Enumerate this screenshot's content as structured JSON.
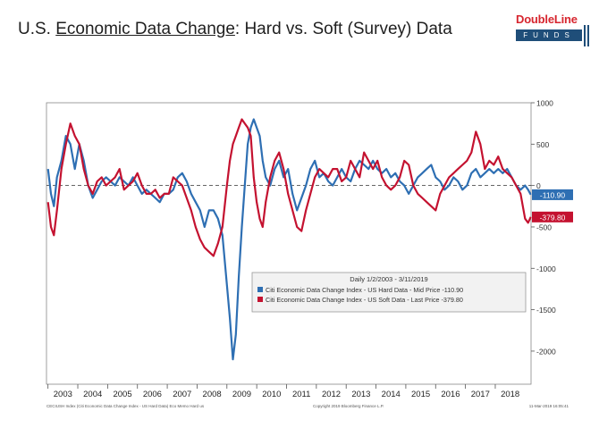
{
  "title": {
    "prefix": "U.S. ",
    "underlined": "Economic Data Change",
    "suffix": ": Hard vs. Soft (Survey) Data"
  },
  "logo": {
    "brand": "DoubleLine",
    "sub": "FUNDS"
  },
  "chart_data": {
    "type": "line",
    "title": "",
    "ylim": [
      -2400,
      1000
    ],
    "xlim": [
      2002.95,
      2019.2
    ],
    "y_ticks": [
      1000,
      500,
      0,
      -500,
      -1000,
      -1500,
      -2000
    ],
    "x_ticks": [
      "2003",
      "2004",
      "2005",
      "2006",
      "2007",
      "2008",
      "2009",
      "2010",
      "2011",
      "2012",
      "2013",
      "2014",
      "2015",
      "2016",
      "2017",
      "2018"
    ],
    "zero_line": "dashed",
    "grid": false,
    "legend": {
      "placement": "lower-right",
      "header": "Daily 1/2/2003 - 3/11/2019",
      "entries": [
        "Citi Economic Data Change Index - US Hard Data - Mid Price -110.90",
        "Citi Economic Data Change Index - US Soft Data - Last Price -379.80"
      ]
    },
    "series": [
      {
        "name": "Citi Economic Data Change Index - US Hard Data - Mid Price",
        "color": "#2e6fb3",
        "last_label": "-110.90",
        "x": [
          2003.0,
          2003.1,
          2003.2,
          2003.3,
          2003.45,
          2003.6,
          2003.75,
          2003.9,
          2004.05,
          2004.2,
          2004.35,
          2004.5,
          2004.65,
          2004.8,
          2004.95,
          2005.1,
          2005.25,
          2005.4,
          2005.55,
          2005.7,
          2005.85,
          2006.0,
          2006.15,
          2006.3,
          2006.45,
          2006.6,
          2006.75,
          2006.9,
          2007.05,
          2007.2,
          2007.35,
          2007.5,
          2007.65,
          2007.8,
          2007.95,
          2008.1,
          2008.25,
          2008.4,
          2008.55,
          2008.7,
          2008.85,
          2009.0,
          2009.1,
          2009.2,
          2009.3,
          2009.4,
          2009.5,
          2009.6,
          2009.7,
          2009.8,
          2009.9,
          2010.0,
          2010.1,
          2010.2,
          2010.3,
          2010.45,
          2010.6,
          2010.75,
          2010.9,
          2011.05,
          2011.2,
          2011.35,
          2011.5,
          2011.65,
          2011.8,
          2011.95,
          2012.1,
          2012.25,
          2012.4,
          2012.55,
          2012.7,
          2012.85,
          2013.0,
          2013.15,
          2013.3,
          2013.45,
          2013.6,
          2013.75,
          2013.9,
          2014.05,
          2014.2,
          2014.35,
          2014.5,
          2014.65,
          2014.8,
          2014.95,
          2015.1,
          2015.25,
          2015.4,
          2015.55,
          2015.7,
          2015.85,
          2016.0,
          2016.15,
          2016.3,
          2016.45,
          2016.6,
          2016.75,
          2016.9,
          2017.05,
          2017.2,
          2017.35,
          2017.5,
          2017.65,
          2017.8,
          2017.95,
          2018.1,
          2018.25,
          2018.4,
          2018.55,
          2018.7,
          2018.85,
          2019.0,
          2019.1,
          2019.19
        ],
        "y": [
          200,
          -100,
          -250,
          100,
          300,
          600,
          500,
          200,
          500,
          300,
          0,
          -150,
          -50,
          50,
          100,
          50,
          0,
          100,
          50,
          0,
          100,
          0,
          -100,
          -50,
          -100,
          -150,
          -200,
          -100,
          -100,
          -50,
          100,
          150,
          50,
          -100,
          -200,
          -300,
          -500,
          -300,
          -300,
          -400,
          -600,
          -1200,
          -1600,
          -2100,
          -1800,
          -1100,
          -500,
          0,
          500,
          700,
          800,
          700,
          600,
          300,
          100,
          0,
          200,
          300,
          100,
          200,
          -100,
          -300,
          -150,
          0,
          200,
          300,
          100,
          150,
          50,
          0,
          100,
          200,
          100,
          50,
          200,
          300,
          250,
          200,
          300,
          200,
          150,
          200,
          100,
          150,
          50,
          0,
          -100,
          0,
          100,
          150,
          200,
          250,
          100,
          50,
          -50,
          0,
          100,
          50,
          -50,
          0,
          150,
          200,
          100,
          150,
          200,
          150,
          200,
          150,
          200,
          100,
          0,
          -50,
          0,
          -50,
          -110.9
        ]
      },
      {
        "name": "Citi Economic Data Change Index - US Soft Data - Last Price",
        "color": "#c41230",
        "last_label": "-379.80",
        "x": [
          2003.0,
          2003.1,
          2003.2,
          2003.3,
          2003.45,
          2003.6,
          2003.75,
          2003.9,
          2004.05,
          2004.2,
          2004.35,
          2004.5,
          2004.65,
          2004.8,
          2004.95,
          2005.1,
          2005.25,
          2005.4,
          2005.55,
          2005.7,
          2005.85,
          2006.0,
          2006.15,
          2006.3,
          2006.45,
          2006.6,
          2006.75,
          2006.9,
          2007.05,
          2007.2,
          2007.35,
          2007.5,
          2007.65,
          2007.8,
          2007.95,
          2008.1,
          2008.25,
          2008.4,
          2008.55,
          2008.7,
          2008.85,
          2009.0,
          2009.1,
          2009.2,
          2009.3,
          2009.4,
          2009.5,
          2009.6,
          2009.7,
          2009.8,
          2009.9,
          2010.0,
          2010.1,
          2010.2,
          2010.3,
          2010.45,
          2010.6,
          2010.75,
          2010.9,
          2011.05,
          2011.2,
          2011.35,
          2011.5,
          2011.65,
          2011.8,
          2011.95,
          2012.1,
          2012.25,
          2012.4,
          2012.55,
          2012.7,
          2012.85,
          2013.0,
          2013.15,
          2013.3,
          2013.45,
          2013.6,
          2013.75,
          2013.9,
          2014.05,
          2014.2,
          2014.35,
          2014.5,
          2014.65,
          2014.8,
          2014.95,
          2015.1,
          2015.25,
          2015.4,
          2015.55,
          2015.7,
          2015.85,
          2016.0,
          2016.15,
          2016.3,
          2016.45,
          2016.6,
          2016.75,
          2016.9,
          2017.05,
          2017.2,
          2017.35,
          2017.5,
          2017.65,
          2017.8,
          2017.95,
          2018.1,
          2018.25,
          2018.4,
          2018.55,
          2018.7,
          2018.85,
          2019.0,
          2019.1,
          2019.19
        ],
        "y": [
          -200,
          -500,
          -600,
          -300,
          200,
          500,
          750,
          600,
          500,
          200,
          0,
          -100,
          50,
          100,
          0,
          50,
          100,
          200,
          -50,
          0,
          50,
          150,
          0,
          -100,
          -100,
          -50,
          -150,
          -100,
          -100,
          100,
          50,
          0,
          -150,
          -300,
          -500,
          -650,
          -750,
          -800,
          -850,
          -700,
          -500,
          0,
          300,
          500,
          600,
          700,
          800,
          750,
          700,
          600,
          100,
          -200,
          -400,
          -500,
          -200,
          100,
          300,
          400,
          200,
          -100,
          -300,
          -500,
          -550,
          -300,
          -100,
          100,
          200,
          150,
          100,
          200,
          200,
          50,
          100,
          300,
          200,
          100,
          400,
          300,
          200,
          300,
          100,
          0,
          -50,
          0,
          100,
          300,
          250,
          0,
          -100,
          -150,
          -200,
          -250,
          -300,
          -100,
          0,
          100,
          150,
          200,
          250,
          300,
          400,
          650,
          500,
          200,
          300,
          250,
          350,
          200,
          150,
          100,
          0,
          -100,
          -400,
          -450,
          -379.8
        ]
      }
    ]
  },
  "footer": {
    "left": "CECIUSH Index (Citi Economic Data Change Index - US Hard Data) Eco Memo Hard us",
    "center": "Copyright 2019 Bloomberg Finance L.P.",
    "right": "11-Mar-2019 16:05:41"
  }
}
